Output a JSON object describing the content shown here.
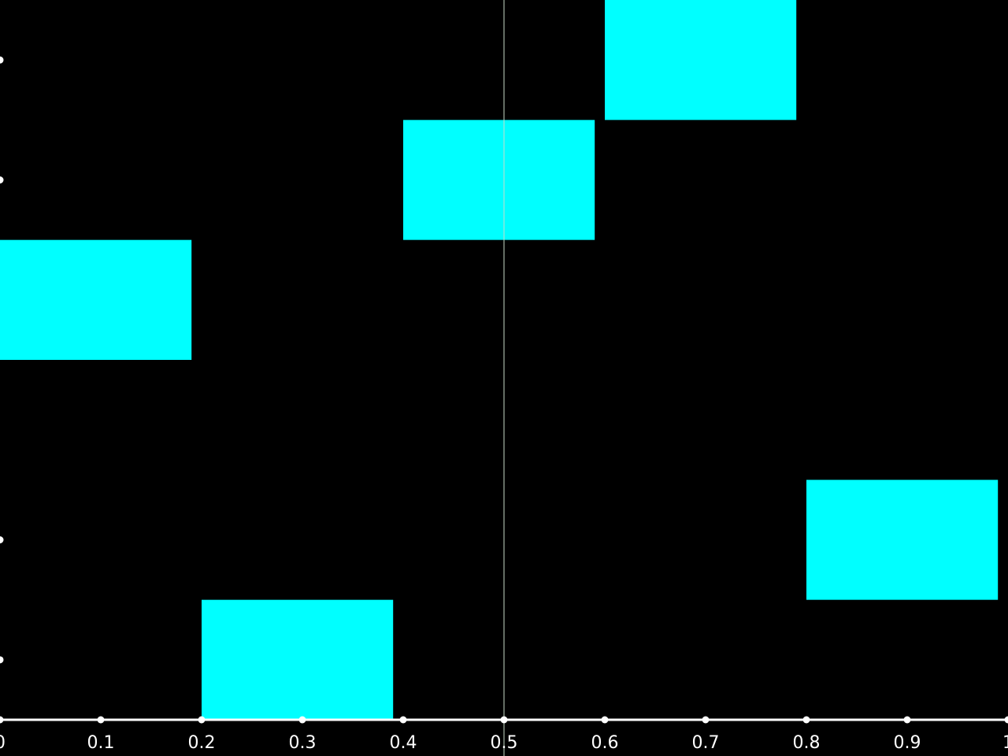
{
  "chart_data": {
    "type": "bar",
    "orientation": "horizontal-segments",
    "x_ticks": [
      "0",
      "0.1",
      "0.2",
      "0.3",
      "0.4",
      "0.5",
      "0.6",
      "0.7",
      "0.8",
      "0.9",
      "1"
    ],
    "xlim": [
      0,
      1
    ],
    "ylim": [
      0,
      6
    ],
    "y_tick_values": [
      0.5,
      1.5,
      4.5,
      5.5
    ],
    "grid": false,
    "legend": "none",
    "bar_color": "#00ffff",
    "axis_color": "#ffffff",
    "reference_line_color": "#c8dcc8",
    "background": "#000000",
    "reference_line_x": 0.5,
    "bars": [
      {
        "x_start": 0.2,
        "x_end": 0.39,
        "y_start": 0,
        "y_end": 1
      },
      {
        "x_start": 0.8,
        "x_end": 0.99,
        "y_start": 1,
        "y_end": 2
      },
      {
        "x_start": 0.0,
        "x_end": 0.19,
        "y_start": 3,
        "y_end": 4
      },
      {
        "x_start": 0.4,
        "x_end": 0.59,
        "y_start": 4,
        "y_end": 5
      },
      {
        "x_start": 0.6,
        "x_end": 0.79,
        "y_start": 5,
        "y_end": 6
      }
    ]
  }
}
